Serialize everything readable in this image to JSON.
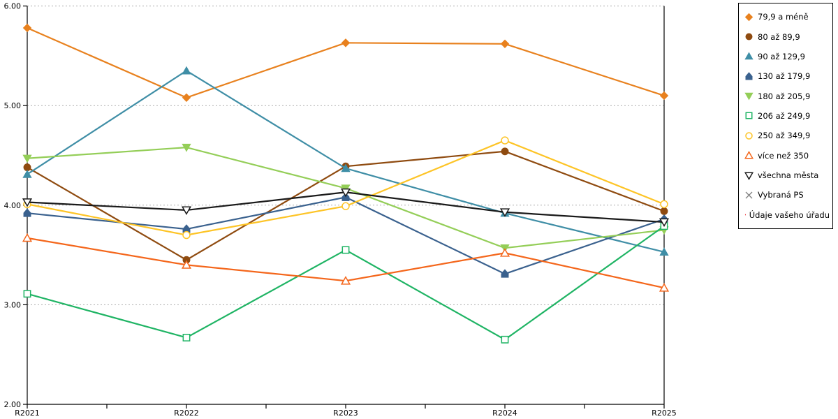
{
  "chart_data": {
    "type": "line",
    "title": "",
    "xlabel": "",
    "ylabel": "",
    "categories": [
      "R2021",
      "R2022",
      "R2023",
      "R2024",
      "R2025"
    ],
    "y_ticks": [
      "6.00",
      "5.00",
      "4.00",
      "3.00",
      "2.00"
    ],
    "ylim": [
      2.0,
      6.0
    ],
    "grid": "horizontal-dashed",
    "legend_position": "right",
    "colors": {
      "grid": "#ADADAD",
      "axis": "#000000"
    },
    "series": [
      {
        "name": "79,9 a méně",
        "color": "#E8811E",
        "marker": "diamond",
        "marker_fill": "filled",
        "values": [
          5.78,
          5.08,
          5.63,
          5.62,
          5.1
        ]
      },
      {
        "name": "80 až 89,9",
        "color": "#8F4B10",
        "marker": "circle",
        "marker_fill": "filled",
        "values": [
          4.38,
          3.45,
          4.39,
          4.54,
          3.94
        ]
      },
      {
        "name": "90 až 129,9",
        "color": "#3F8EA6",
        "marker": "triangle-up",
        "marker_fill": "filled",
        "values": [
          4.31,
          5.35,
          4.37,
          3.92,
          3.53
        ]
      },
      {
        "name": "130 až 179,9",
        "color": "#3A618E",
        "marker": "pentagon",
        "marker_fill": "filled",
        "values": [
          3.92,
          3.76,
          4.08,
          3.31,
          3.86
        ]
      },
      {
        "name": "180 až 205,9",
        "color": "#94CE58",
        "marker": "triangle-down",
        "marker_fill": "filled",
        "values": [
          4.47,
          4.58,
          4.17,
          3.57,
          3.75
        ]
      },
      {
        "name": "206 až 249,9",
        "color": "#1FB464",
        "marker": "square",
        "marker_fill": "open",
        "values": [
          3.11,
          2.67,
          3.55,
          2.65,
          3.79
        ]
      },
      {
        "name": "250 až 349,9",
        "color": "#FDC426",
        "marker": "circle",
        "marker_fill": "open",
        "values": [
          4.01,
          3.7,
          3.99,
          4.65,
          4.01
        ]
      },
      {
        "name": "více než 350",
        "color": "#F4661B",
        "marker": "triangle-up",
        "marker_fill": "open",
        "values": [
          3.67,
          3.4,
          3.24,
          3.52,
          3.17
        ]
      },
      {
        "name": "všechna města",
        "color": "#1A1A1A",
        "marker": "triangle-down",
        "marker_fill": "open",
        "values": [
          4.03,
          3.95,
          4.13,
          3.93,
          3.83
        ]
      },
      {
        "name": "Vybraná PS",
        "color": "#808080",
        "marker": "x",
        "marker_fill": "open",
        "values": []
      },
      {
        "name": "Údaje vašeho úřadu",
        "color": "#ED1C24",
        "marker": "diamond",
        "marker_fill": "filled",
        "values": []
      }
    ]
  }
}
